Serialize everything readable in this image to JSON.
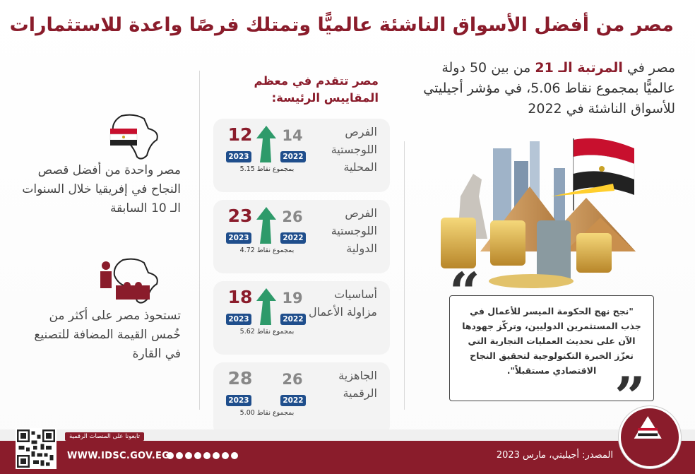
{
  "title": "مصر من أفضل الأسواق الناشئة عالميًّا وتمتلك فرصًا واعدة للاستثمارات",
  "ranking": {
    "prefix": "مصر في ",
    "highlight": "المرتبة الـ 21",
    "suffix": " من بين 50 دولة عالميًّا بمجموع نقاط 5.06، في مؤشر أجيليتي للأسواق الناشئة في 2022"
  },
  "quote": "\"نجح نهج الحكومة الميسر للأعمال في جذب المستثمرين الدوليين، وتركّز جهودها الآن على تحديث العمليات التجارية التي تعزّز الخبرة التكنولوجية لتحقيق النجاح الاقتصادي مستقبلاً\".",
  "metrics_title": "مصر تتقدم في معظم المقاييس الرئيسة:",
  "metrics": [
    {
      "label": "الفرص اللوجستية المحلية",
      "v2023": "12",
      "v2022": "14",
      "y2023": "2023",
      "y2022": "2022",
      "points": "بمجموع نقاط 5.15",
      "trend": "up"
    },
    {
      "label": "الفرص اللوجستية الدولية",
      "v2023": "23",
      "v2022": "26",
      "y2023": "2023",
      "y2022": "2022",
      "points": "بمجموع نقاط 4.72",
      "trend": "up"
    },
    {
      "label": "أساسيات مزاولة الأعمال",
      "v2023": "18",
      "v2022": "19",
      "y2023": "2023",
      "y2022": "2022",
      "points": "بمجموع نقاط 5.62",
      "trend": "up"
    },
    {
      "label": "الجاهزية الرقمية",
      "v2023": "28",
      "v2022": "26",
      "y2023": "2023",
      "y2022": "2022",
      "points": "بمجموع نقاط 5.00",
      "trend": "none"
    }
  ],
  "left_items": [
    {
      "text": "مصر واحدة من أفضل قصص النجاح في إفريقيا خلال السنوات الـ 10 السابقة",
      "icon": "africa-egypt-flag-icon"
    },
    {
      "text": "تستحوذ مصر على أكثر من خُمس القيمة المضافة للتصنيع في القارة",
      "icon": "africa-manufacturing-icon"
    }
  ],
  "footer": {
    "source": "المصدر: أجيليتي، مارس 2023",
    "url": "WWW.IDSC.GOV.EG",
    "follow": "تابعونا على المنصات الرقمية"
  },
  "colors": {
    "brand": "#8a1c2b",
    "year_badge": "#1f4e8c",
    "arrow": "#2e9a6a"
  }
}
